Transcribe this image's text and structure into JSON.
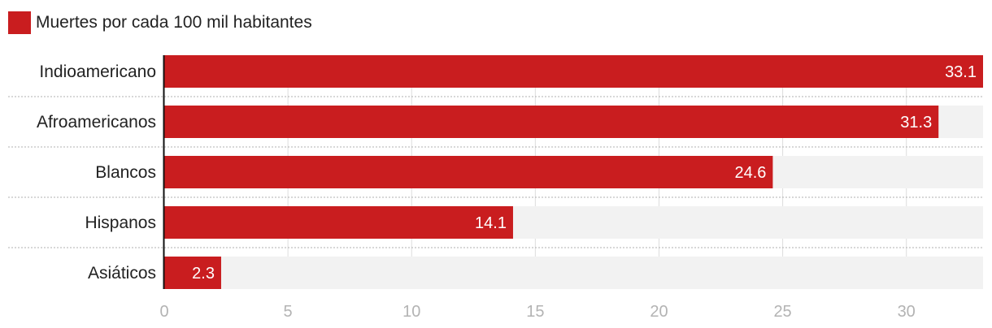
{
  "chart_data": {
    "type": "bar",
    "orientation": "horizontal",
    "categories": [
      "Indioamericano",
      "Afroamericanos",
      "Blancos",
      "Hispanos",
      "Asiáticos"
    ],
    "series": [
      {
        "name": "Muertes por cada 100 mil habitantes",
        "values": [
          33.1,
          31.3,
          24.6,
          14.1,
          2.3
        ],
        "color": "#c91d1f"
      }
    ],
    "xlim": [
      0,
      33.1
    ],
    "xticks": [
      "0",
      "5",
      "10",
      "15",
      "20",
      "25",
      "30"
    ],
    "value_labels": [
      "33.1",
      "31.3",
      "24.6",
      "14.1",
      "2.3"
    ],
    "grid": true,
    "legend": "top-left"
  },
  "colors": {
    "bar": "#c91d1f",
    "track": "#f2f2f2",
    "grid": "#dddddd",
    "tick_text": "#b3b3b3",
    "label_text": "#222222"
  }
}
